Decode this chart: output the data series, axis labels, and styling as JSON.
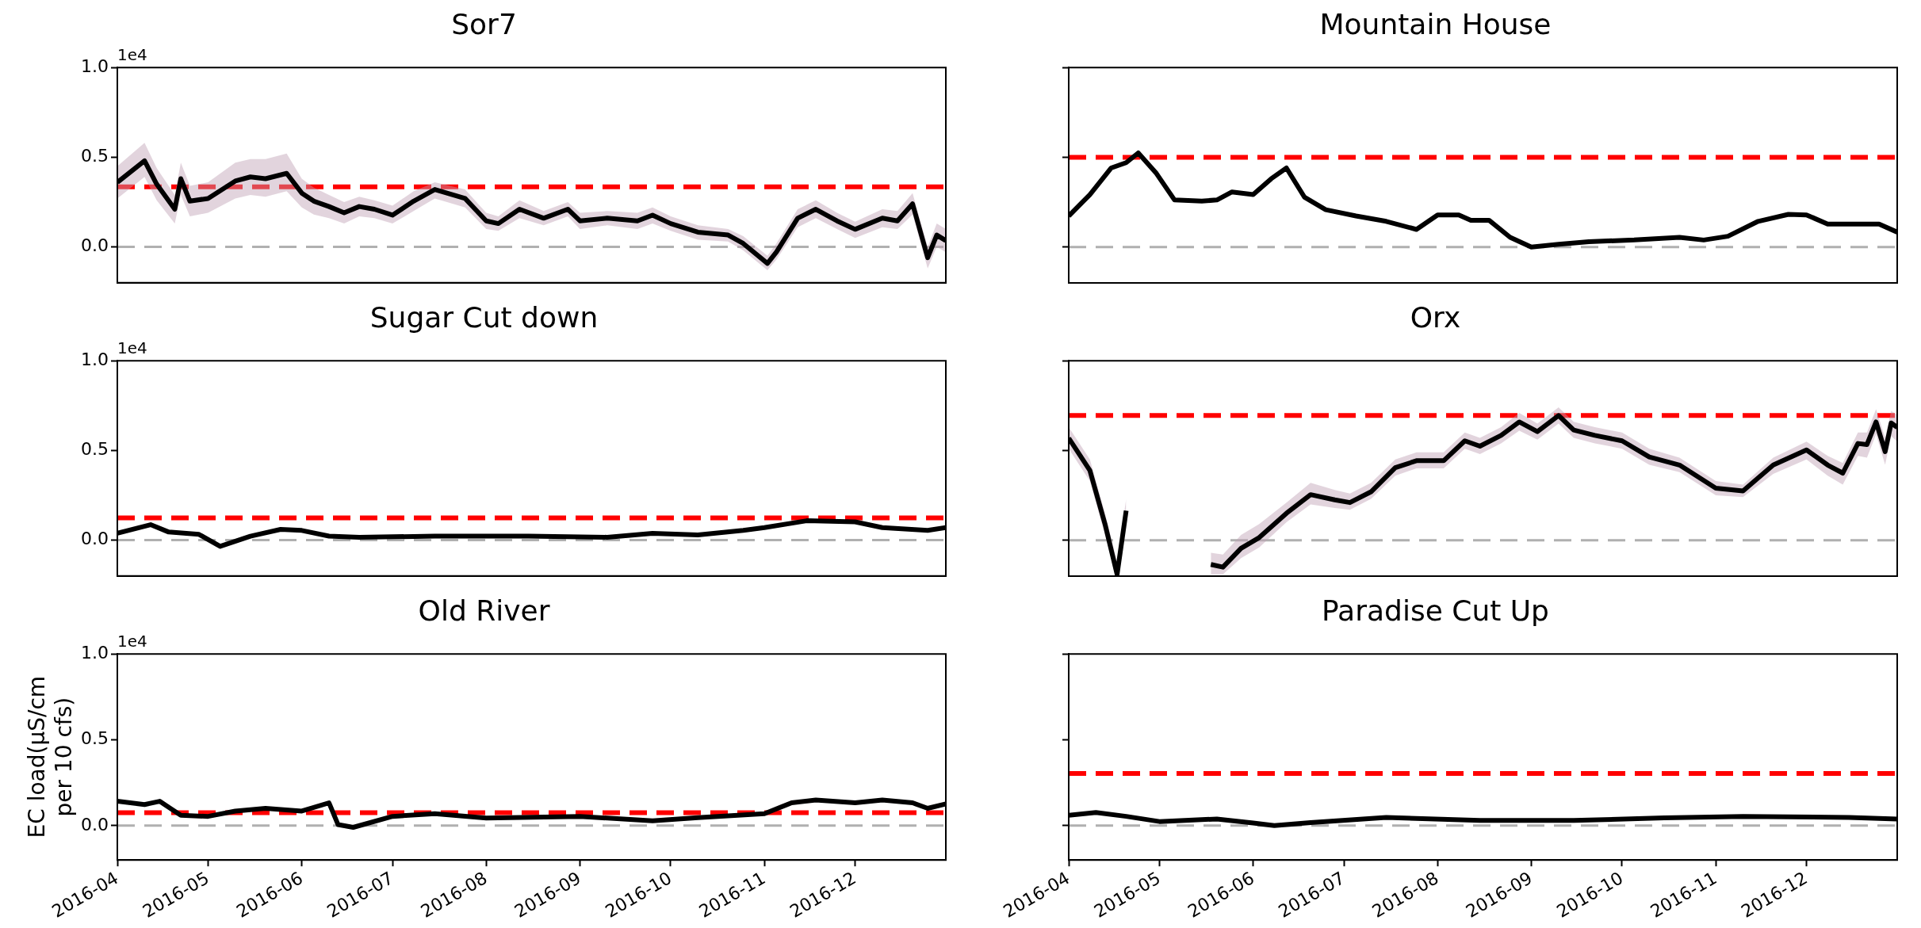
{
  "chart_data": [
    {
      "type": "line",
      "title": "Sor7",
      "annotations": [
        "1e4"
      ],
      "tick_labels": "y",
      "xlim": [
        "2016-04-01",
        "2016-12-31"
      ],
      "ylim": [
        -0.2,
        1.0
      ],
      "yticks": [
        {
          "value": 0,
          "label": "0.0"
        },
        {
          "value": 0.5,
          "label": "0.5"
        },
        {
          "value": 1.0,
          "label": "1.0"
        }
      ],
      "ref_lines": [
        {
          "axis": "y",
          "value": 0.335,
          "color": "#ff0000",
          "line_style": "dashed"
        },
        {
          "axis": "y",
          "value": 0,
          "color": "#b0b0b0",
          "line_style": "dashed"
        }
      ],
      "x": [
        "2016-04-01",
        "2016-04-10",
        "2016-04-14",
        "2016-04-20",
        "2016-04-22",
        "2016-04-25",
        "2016-05-01",
        "2016-05-10",
        "2016-05-15",
        "2016-05-20",
        "2016-05-27",
        "2016-06-01",
        "2016-06-05",
        "2016-06-10",
        "2016-06-15",
        "2016-06-20",
        "2016-06-25",
        "2016-07-01",
        "2016-07-08",
        "2016-07-15",
        "2016-07-25",
        "2016-08-01",
        "2016-08-05",
        "2016-08-12",
        "2016-08-20",
        "2016-08-28",
        "2016-09-01",
        "2016-09-10",
        "2016-09-20",
        "2016-09-25",
        "2016-10-01",
        "2016-10-10",
        "2016-10-20",
        "2016-10-25",
        "2016-11-02",
        "2016-11-05",
        "2016-11-12",
        "2016-11-18",
        "2016-11-25",
        "2016-12-01",
        "2016-12-10",
        "2016-12-15",
        "2016-12-20",
        "2016-12-25",
        "2016-12-28",
        "2016-12-31"
      ],
      "series": [
        {
          "color": "#000000",
          "values": [
            0.36,
            0.48,
            0.35,
            0.21,
            0.38,
            0.255,
            0.27,
            0.367,
            0.39,
            0.38,
            0.41,
            0.3,
            0.255,
            0.225,
            0.19,
            0.225,
            0.21,
            0.177,
            0.255,
            0.32,
            0.27,
            0.145,
            0.13,
            0.21,
            0.16,
            0.21,
            0.145,
            0.16,
            0.145,
            0.177,
            0.13,
            0.082,
            0.066,
            0.019,
            -0.092,
            -0.028,
            0.16,
            0.21,
            0.145,
            0.098,
            0.16,
            0.145,
            0.24,
            -0.06,
            0.066,
            0.035
          ],
          "lower": [
            0.27,
            0.39,
            0.26,
            0.13,
            0.29,
            0.17,
            0.19,
            0.27,
            0.29,
            0.28,
            0.31,
            0.22,
            0.18,
            0.16,
            0.13,
            0.17,
            0.16,
            0.13,
            0.2,
            0.27,
            0.22,
            0.1,
            0.09,
            0.16,
            0.12,
            0.17,
            0.1,
            0.12,
            0.1,
            0.13,
            0.09,
            0.04,
            0.03,
            -0.02,
            -0.13,
            -0.07,
            0.11,
            0.16,
            0.1,
            0.05,
            0.11,
            0.1,
            0.18,
            -0.12,
            0,
            -0.03
          ],
          "upper": [
            0.45,
            0.58,
            0.44,
            0.29,
            0.47,
            0.34,
            0.36,
            0.47,
            0.49,
            0.49,
            0.52,
            0.38,
            0.33,
            0.29,
            0.25,
            0.28,
            0.26,
            0.23,
            0.31,
            0.36,
            0.32,
            0.19,
            0.17,
            0.26,
            0.2,
            0.25,
            0.19,
            0.2,
            0.19,
            0.22,
            0.17,
            0.12,
            0.1,
            0.06,
            -0.05,
            0.02,
            0.21,
            0.26,
            0.19,
            0.14,
            0.21,
            0.2,
            0.3,
            0,
            0.13,
            0.1
          ]
        }
      ]
    },
    {
      "type": "line",
      "title": "Mountain House",
      "tick_labels": false,
      "xlim": [
        "2016-04-01",
        "2016-12-31"
      ],
      "ylim": [
        -0.2,
        1.0
      ],
      "yticks": [
        {
          "value": 0,
          "label": null
        },
        {
          "value": 0.5,
          "label": null
        },
        {
          "value": 1.0,
          "label": null
        }
      ],
      "ref_lines": [
        {
          "axis": "y",
          "value": 0.5,
          "color": "#ff0000",
          "line_style": "dashed"
        },
        {
          "axis": "y",
          "value": 0,
          "color": "#b0b0b0",
          "line_style": "dashed"
        }
      ],
      "x": [
        "2016-04-01",
        "2016-04-08",
        "2016-04-15",
        "2016-04-20",
        "2016-04-24",
        "2016-04-30",
        "2016-05-06",
        "2016-05-15",
        "2016-05-20",
        "2016-05-25",
        "2016-06-01",
        "2016-06-07",
        "2016-06-12",
        "2016-06-18",
        "2016-06-25",
        "2016-07-05",
        "2016-07-15",
        "2016-07-25",
        "2016-08-01",
        "2016-08-08",
        "2016-08-12",
        "2016-08-18",
        "2016-08-25",
        "2016-09-01",
        "2016-09-10",
        "2016-09-20",
        "2016-10-05",
        "2016-10-20",
        "2016-10-28",
        "2016-11-05",
        "2016-11-15",
        "2016-11-25",
        "2016-12-01",
        "2016-12-08",
        "2016-12-18",
        "2016-12-25",
        "2016-12-31"
      ],
      "series": [
        {
          "color": "#000000",
          "values": [
            0.173,
            0.292,
            0.44,
            0.47,
            0.524,
            0.41,
            0.262,
            0.256,
            0.262,
            0.307,
            0.292,
            0.381,
            0.44,
            0.277,
            0.208,
            0.173,
            0.143,
            0.098,
            0.179,
            0.179,
            0.149,
            0.149,
            0.054,
            0,
            0.015,
            0.03,
            0.039,
            0.054,
            0.039,
            0.06,
            0.143,
            0.182,
            0.179,
            0.128,
            0.128,
            0.128,
            0.083
          ]
        }
      ]
    },
    {
      "type": "line",
      "title": "Sugar Cut down",
      "annotations": [
        "1e4"
      ],
      "tick_labels": "y",
      "xlim": [
        "2016-04-01",
        "2016-12-31"
      ],
      "ylim": [
        -0.2,
        1.0
      ],
      "yticks": [
        {
          "value": 0,
          "label": "0.0"
        },
        {
          "value": 0.5,
          "label": "0.5"
        },
        {
          "value": 1.0,
          "label": "1.0"
        }
      ],
      "ref_lines": [
        {
          "axis": "y",
          "value": 0.124,
          "color": "#ff0000",
          "line_style": "dashed"
        },
        {
          "axis": "y",
          "value": 0,
          "color": "#b0b0b0",
          "line_style": "dashed"
        }
      ],
      "x": [
        "2016-04-01",
        "2016-04-12",
        "2016-04-18",
        "2016-04-28",
        "2016-05-05",
        "2016-05-15",
        "2016-05-25",
        "2016-06-01",
        "2016-06-10",
        "2016-06-20",
        "2016-07-15",
        "2016-08-15",
        "2016-09-10",
        "2016-09-25",
        "2016-10-10",
        "2016-10-25",
        "2016-11-01",
        "2016-11-15",
        "2016-12-01",
        "2016-12-10",
        "2016-12-25",
        "2016-12-31"
      ],
      "series": [
        {
          "color": "#000000",
          "values": [
            0.038,
            0.086,
            0.045,
            0.032,
            -0.035,
            0.022,
            0.06,
            0.054,
            0.022,
            0.016,
            0.022,
            0.022,
            0.016,
            0.038,
            0.029,
            0.054,
            0.07,
            0.108,
            0.102,
            0.07,
            0.054,
            0.07
          ]
        }
      ]
    },
    {
      "type": "line",
      "title": "Orx",
      "tick_labels": false,
      "xlim": [
        "2016-04-01",
        "2016-12-31"
      ],
      "ylim": [
        -0.2,
        1.0
      ],
      "yticks": [
        {
          "value": 0,
          "label": null
        },
        {
          "value": 0.5,
          "label": null
        },
        {
          "value": 1.0,
          "label": null
        }
      ],
      "ref_lines": [
        {
          "axis": "y",
          "value": 0.695,
          "color": "#ff0000",
          "line_style": "dashed"
        },
        {
          "axis": "y",
          "value": 0,
          "color": "#b0b0b0",
          "line_style": "dashed"
        }
      ],
      "x": [
        "2016-04-01",
        "2016-04-08",
        "2016-04-13",
        "2016-04-17",
        "2016-04-20",
        "2016-04-23",
        "2016-05-18",
        "2016-05-22",
        "2016-05-28",
        "2016-06-03",
        "2016-06-12",
        "2016-06-20",
        "2016-06-28",
        "2016-07-03",
        "2016-07-10",
        "2016-07-18",
        "2016-07-25",
        "2016-08-03",
        "2016-08-10",
        "2016-08-15",
        "2016-08-22",
        "2016-08-28",
        "2016-09-03",
        "2016-09-10",
        "2016-09-15",
        "2016-09-22",
        "2016-10-01",
        "2016-10-10",
        "2016-10-20",
        "2016-11-01",
        "2016-11-10",
        "2016-11-20",
        "2016-12-01",
        "2016-12-08",
        "2016-12-13",
        "2016-12-18",
        "2016-12-21",
        "2016-12-24",
        "2016-12-27",
        "2016-12-29",
        "2016-12-31"
      ],
      "series": [
        {
          "color": "#000000",
          "values": [
            0.569,
            0.389,
            0.09,
            -0.19,
            0.165,
            null,
            -0.135,
            -0.15,
            -0.045,
            0.015,
            0.15,
            0.254,
            0.225,
            0.21,
            0.27,
            0.404,
            0.443,
            0.443,
            0.554,
            0.524,
            0.584,
            0.659,
            0.605,
            0.695,
            0.614,
            0.584,
            0.554,
            0.464,
            0.419,
            0.29,
            0.275,
            0.419,
            0.503,
            0.419,
            0.374,
            0.539,
            0.533,
            0.659,
            0.494,
            0.653,
            0.629
          ],
          "lower": [
            0.51,
            0.33,
            0.03,
            -0.195,
            0.1,
            null,
            -0.19,
            -0.19,
            -0.1,
            -0.04,
            0.1,
            0.2,
            0.18,
            0.17,
            0.23,
            0.36,
            0.4,
            0.4,
            0.51,
            0.48,
            0.54,
            0.61,
            0.56,
            0.65,
            0.57,
            0.54,
            0.51,
            0.42,
            0.38,
            0.25,
            0.24,
            0.37,
            0.45,
            0.36,
            0.31,
            0.47,
            0.46,
            0.59,
            0.42,
            0.58,
            0.55
          ],
          "upper": [
            0.63,
            0.45,
            0.15,
            -0.12,
            0.23,
            null,
            -0.07,
            -0.08,
            0.03,
            0.09,
            0.21,
            0.32,
            0.28,
            0.26,
            0.32,
            0.45,
            0.49,
            0.49,
            0.6,
            0.57,
            0.63,
            0.71,
            0.65,
            0.74,
            0.66,
            0.63,
            0.6,
            0.51,
            0.46,
            0.33,
            0.31,
            0.46,
            0.55,
            0.47,
            0.43,
            0.6,
            0.6,
            0.73,
            0.57,
            0.72,
            0.7
          ]
        }
      ]
    },
    {
      "type": "line",
      "title": "Old River",
      "annotations": [
        "1e4"
      ],
      "ylabel": "EC load(μS/cm\nper 10 cfs)",
      "xlim": [
        "2016-04-01",
        "2016-12-31"
      ],
      "xticks": [
        {
          "value": "2016-04",
          "label": "2016-04"
        },
        {
          "value": "2016-05",
          "label": "2016-05"
        },
        {
          "value": "2016-06",
          "label": "2016-06"
        },
        {
          "value": "2016-07",
          "label": "2016-07"
        },
        {
          "value": "2016-08",
          "label": "2016-08"
        },
        {
          "value": "2016-09",
          "label": "2016-09"
        },
        {
          "value": "2016-10",
          "label": "2016-10"
        },
        {
          "value": "2016-11",
          "label": "2016-11"
        },
        {
          "value": "2016-12",
          "label": "2016-12"
        }
      ],
      "ylim": [
        -0.2,
        1.0
      ],
      "yticks": [
        {
          "value": 0,
          "label": "0.0"
        },
        {
          "value": 0.5,
          "label": "0.5"
        },
        {
          "value": 1.0,
          "label": "1.0"
        }
      ],
      "ref_lines": [
        {
          "axis": "y",
          "value": 0.076,
          "color": "#ff0000",
          "line_style": "dashed"
        },
        {
          "axis": "y",
          "value": 0,
          "color": "#b0b0b0",
          "line_style": "dashed"
        }
      ],
      "x": [
        "2016-04-01",
        "2016-04-10",
        "2016-04-15",
        "2016-04-22",
        "2016-05-01",
        "2016-05-10",
        "2016-05-20",
        "2016-06-01",
        "2016-06-10",
        "2016-06-13",
        "2016-06-18",
        "2016-07-01",
        "2016-07-15",
        "2016-08-01",
        "2016-09-01",
        "2016-09-25",
        "2016-10-10",
        "2016-11-01",
        "2016-11-10",
        "2016-11-18",
        "2016-12-01",
        "2016-12-10",
        "2016-12-20",
        "2016-12-25",
        "2016-12-31"
      ],
      "series": [
        {
          "color": "#000000",
          "values": [
            0.142,
            0.123,
            0.142,
            0.06,
            0.054,
            0.085,
            0.101,
            0.085,
            0.133,
            0.006,
            -0.01,
            0.054,
            0.07,
            0.044,
            0.054,
            0.028,
            0.047,
            0.07,
            0.133,
            0.149,
            0.133,
            0.149,
            0.133,
            0.101,
            0.127
          ]
        }
      ]
    },
    {
      "type": "line",
      "title": "Paradise Cut Up",
      "tick_labels": "x",
      "xlim": [
        "2016-04-01",
        "2016-12-31"
      ],
      "xticks": [
        {
          "value": "2016-04",
          "label": "2016-04"
        },
        {
          "value": "2016-05",
          "label": "2016-05"
        },
        {
          "value": "2016-06",
          "label": "2016-06"
        },
        {
          "value": "2016-07",
          "label": "2016-07"
        },
        {
          "value": "2016-08",
          "label": "2016-08"
        },
        {
          "value": "2016-09",
          "label": "2016-09"
        },
        {
          "value": "2016-10",
          "label": "2016-10"
        },
        {
          "value": "2016-11",
          "label": "2016-11"
        },
        {
          "value": "2016-12",
          "label": "2016-12"
        }
      ],
      "ylim": [
        -0.2,
        1.0
      ],
      "yticks": [
        {
          "value": 0,
          "label": null
        },
        {
          "value": 0.5,
          "label": null
        },
        {
          "value": 1.0,
          "label": null
        }
      ],
      "ref_lines": [
        {
          "axis": "y",
          "value": 0.304,
          "color": "#ff0000",
          "line_style": "dashed"
        },
        {
          "axis": "y",
          "value": 0,
          "color": "#b0b0b0",
          "line_style": "dashed"
        }
      ],
      "x": [
        "2016-04-01",
        "2016-04-10",
        "2016-04-20",
        "2016-05-01",
        "2016-05-20",
        "2016-06-01",
        "2016-06-08",
        "2016-06-20",
        "2016-07-15",
        "2016-08-15",
        "2016-09-15",
        "2016-10-15",
        "2016-11-10",
        "2016-12-15",
        "2016-12-31"
      ],
      "series": [
        {
          "color": "#000000",
          "values": [
            0.06,
            0.077,
            0.054,
            0.024,
            0.039,
            0.015,
            0,
            0.018,
            0.048,
            0.03,
            0.03,
            0.045,
            0.054,
            0.048,
            0.039
          ]
        }
      ]
    }
  ]
}
